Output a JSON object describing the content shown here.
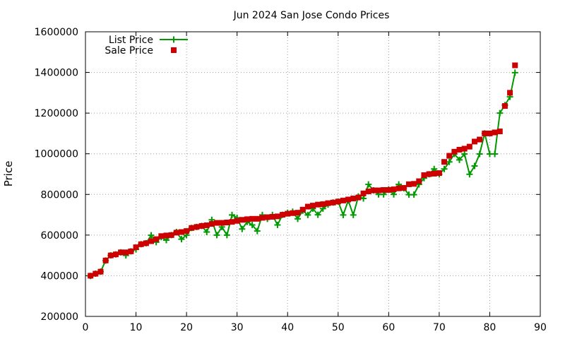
{
  "chart_data": {
    "type": "scatter",
    "title": "Jun 2024 San Jose Condo Prices",
    "xlabel": "",
    "ylabel": "Price",
    "xlim": [
      0,
      90
    ],
    "ylim": [
      200000,
      1600000
    ],
    "x_ticks": [
      "0",
      "10",
      "20",
      "30",
      "40",
      "50",
      "60",
      "70",
      "80",
      "90"
    ],
    "y_ticks": [
      "200000",
      "400000",
      "600000",
      "800000",
      "1000000",
      "1200000",
      "1400000",
      "1600000"
    ],
    "grid": true,
    "legend_position": "top-left",
    "series": [
      {
        "name": "List Price",
        "style": "line-points",
        "color": "#009900",
        "values": [
          399000,
          410000,
          420000,
          475000,
          500000,
          505000,
          515000,
          500000,
          520000,
          530000,
          555000,
          560000,
          599000,
          565000,
          590000,
          575000,
          600000,
          615000,
          580000,
          600000,
          635000,
          640000,
          645000,
          615000,
          675000,
          600000,
          640000,
          600000,
          699000,
          685000,
          630000,
          665000,
          650000,
          620000,
          699000,
          680000,
          699000,
          650000,
          700000,
          710000,
          715000,
          680000,
          720000,
          699000,
          730000,
          700000,
          730000,
          750000,
          760000,
          765000,
          699000,
          770000,
          699000,
          790000,
          780000,
          849000,
          820000,
          800000,
          800000,
          825000,
          800000,
          849000,
          830000,
          799000,
          799000,
          849000,
          880000,
          899000,
          925000,
          899000,
          925000,
          960000,
          999000,
          970000,
          999000,
          899000,
          940000,
          999000,
          1100000,
          999000,
          999000,
          1200000,
          1239000,
          1280000,
          1399000
        ]
      },
      {
        "name": "Sale Price",
        "style": "points",
        "color": "#cc0000",
        "values": [
          400000,
          410000,
          420000,
          475000,
          500000,
          505000,
          515000,
          515000,
          520000,
          540000,
          555000,
          560000,
          570000,
          580000,
          595000,
          598000,
          600000,
          612000,
          615000,
          620000,
          635000,
          640000,
          645000,
          648000,
          655000,
          660000,
          660000,
          662000,
          665000,
          670000,
          675000,
          678000,
          680000,
          680000,
          685000,
          688000,
          690000,
          692000,
          700000,
          705000,
          708000,
          710000,
          725000,
          740000,
          745000,
          750000,
          752000,
          757000,
          760000,
          765000,
          770000,
          775000,
          780000,
          785000,
          805000,
          815000,
          820000,
          820000,
          822000,
          822000,
          825000,
          830000,
          832000,
          850000,
          852000,
          865000,
          895000,
          900000,
          902000,
          905000,
          960000,
          990000,
          1010000,
          1020000,
          1025000,
          1035000,
          1060000,
          1070000,
          1100000,
          1100000,
          1105000,
          1110000,
          1235000,
          1300000,
          1435000
        ]
      }
    ]
  }
}
